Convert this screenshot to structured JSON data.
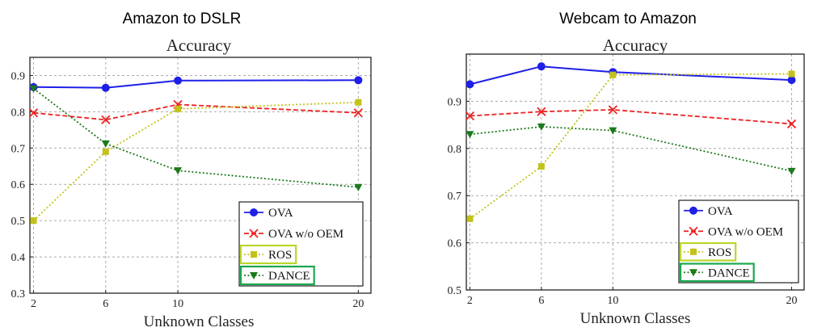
{
  "chart_data": [
    {
      "type": "line",
      "heading": "Amazon to DSLR",
      "title": "Accuracy",
      "xlabel": "Unknown Classes",
      "ylabel": "",
      "x": [
        2,
        6,
        10,
        20
      ],
      "x_ticks": [
        "2",
        "6",
        "10",
        "20"
      ],
      "xlim": [
        1.8,
        20.7
      ],
      "ylim": [
        0.3,
        0.95
      ],
      "y_ticks": [
        "0.3",
        "0.4",
        "0.5",
        "0.6",
        "0.7",
        "0.8",
        "0.9"
      ],
      "grid": true,
      "legend_position": "bottom-right",
      "series": [
        {
          "name": "OVA",
          "values": [
            0.868,
            0.866,
            0.886,
            0.887
          ],
          "color": "#1f1fe8",
          "dash": "solid",
          "marker": "circle",
          "highlight": null
        },
        {
          "name": "OVA w/o OEM",
          "values": [
            0.797,
            0.778,
            0.82,
            0.797
          ],
          "color": "#ee2222",
          "dash": "dashed",
          "marker": "x",
          "highlight": null
        },
        {
          "name": "ROS",
          "values": [
            0.5,
            0.69,
            0.808,
            0.826
          ],
          "color": "#c2c21a",
          "dash": "dotted",
          "marker": "square",
          "highlight": "#bcd62a"
        },
        {
          "name": "DANCE",
          "values": [
            0.864,
            0.712,
            0.638,
            0.592
          ],
          "color": "#1c7a1c",
          "dash": "dotted",
          "marker": "triangle-down",
          "highlight": "#1aa84e"
        }
      ]
    },
    {
      "type": "line",
      "heading": "Webcam to Amazon",
      "title": "Accuracy",
      "xlabel": "Unknown Classes",
      "ylabel": "",
      "x": [
        2,
        6,
        10,
        20
      ],
      "x_ticks": [
        "2",
        "6",
        "10",
        "20"
      ],
      "xlim": [
        1.8,
        20.7
      ],
      "ylim": [
        0.5,
        1.0
      ],
      "y_ticks": [
        "0.5",
        "0.6",
        "0.7",
        "0.8",
        "0.9"
      ],
      "grid": true,
      "legend_position": "bottom-right",
      "series": [
        {
          "name": "OVA",
          "values": [
            0.936,
            0.974,
            0.962,
            0.945
          ],
          "color": "#1f1fe8",
          "dash": "solid",
          "marker": "circle",
          "highlight": null
        },
        {
          "name": "OVA w/o OEM",
          "values": [
            0.869,
            0.878,
            0.882,
            0.852
          ],
          "color": "#ee2222",
          "dash": "dashed",
          "marker": "x",
          "highlight": null
        },
        {
          "name": "ROS",
          "values": [
            0.651,
            0.762,
            0.956,
            0.958
          ],
          "color": "#c2c21a",
          "dash": "dotted",
          "marker": "square",
          "highlight": "#bcd62a"
        },
        {
          "name": "DANCE",
          "values": [
            0.83,
            0.846,
            0.838,
            0.752
          ],
          "color": "#1c7a1c",
          "dash": "dotted",
          "marker": "triangle-down",
          "highlight": "#1aa84e"
        }
      ]
    }
  ]
}
